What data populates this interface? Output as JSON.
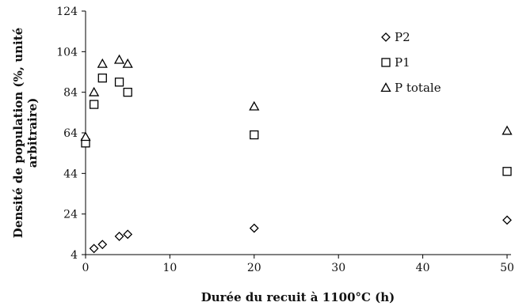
{
  "chart_data": {
    "type": "scatter",
    "xlabel": "Durée du recuit à 1100°C (h)",
    "ylabel": "Densité de population (%, unité arbitraire)",
    "ylabel_lines": [
      "Densité de population (%, unité",
      "arbitraire)"
    ],
    "xlim": [
      0,
      50
    ],
    "ylim": [
      4,
      124
    ],
    "x_ticks": [
      0,
      10,
      20,
      30,
      40,
      50
    ],
    "y_ticks": [
      4,
      24,
      44,
      64,
      84,
      104,
      124
    ],
    "grid": false,
    "legend_position": "top-right",
    "series": [
      {
        "name": "P2",
        "marker": "diamond",
        "x": [
          1,
          2,
          4,
          5,
          20,
          50
        ],
        "y": [
          7,
          9,
          13,
          14,
          17,
          21
        ]
      },
      {
        "name": "P1",
        "marker": "square",
        "x": [
          0,
          1,
          2,
          4,
          5,
          20,
          50
        ],
        "y": [
          59,
          78,
          91,
          89,
          84,
          63,
          45
        ]
      },
      {
        "name": "P totale",
        "marker": "triangle",
        "x": [
          0,
          1,
          2,
          4,
          5,
          20,
          50
        ],
        "y": [
          62,
          84,
          98,
          100,
          98,
          77,
          65
        ]
      }
    ]
  }
}
